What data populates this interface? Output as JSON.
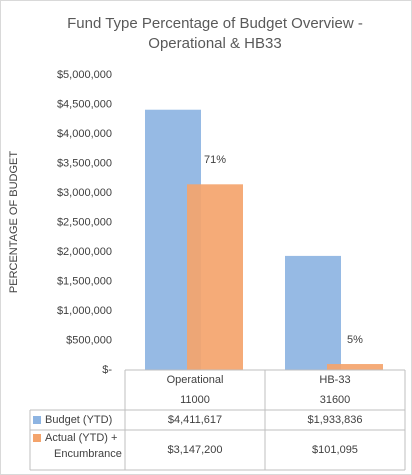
{
  "chart_data": {
    "type": "bar",
    "title": "Fund Type Percentage of Budget Overview - Operational & HB33",
    "y_label": "PERCENTAGE OF BUDGET",
    "categories": [
      [
        "Operational",
        "11000"
      ],
      [
        "HB-33",
        "31600"
      ]
    ],
    "series": [
      {
        "name": "Budget (YTD)",
        "color": "#8db4e2",
        "values": [
          4411617,
          1933836
        ],
        "value_labels": [
          "$4,411,617",
          "$1,933,836"
        ]
      },
      {
        "name": "Actual (YTD) + Encumbrance",
        "color": "#f4a46c",
        "values": [
          3147200,
          101095
        ],
        "value_labels": [
          "$3,147,200",
          "$101,095"
        ]
      }
    ],
    "annotations": [
      "71%",
      "5%"
    ],
    "ylim": [
      0,
      5000000
    ],
    "yticks": [
      {
        "value": 0,
        "label": "$-"
      },
      {
        "value": 500000,
        "label": "$500,000"
      },
      {
        "value": 1000000,
        "label": "$1,000,000"
      },
      {
        "value": 1500000,
        "label": "$1,500,000"
      },
      {
        "value": 2000000,
        "label": "$2,000,000"
      },
      {
        "value": 2500000,
        "label": "$2,500,000"
      },
      {
        "value": 3000000,
        "label": "$3,000,000"
      },
      {
        "value": 3500000,
        "label": "$3,500,000"
      },
      {
        "value": 4000000,
        "label": "$4,000,000"
      },
      {
        "value": 4500000,
        "label": "$4,500,000"
      },
      {
        "value": 5000000,
        "label": "$5,000,000"
      }
    ],
    "grid": false
  }
}
